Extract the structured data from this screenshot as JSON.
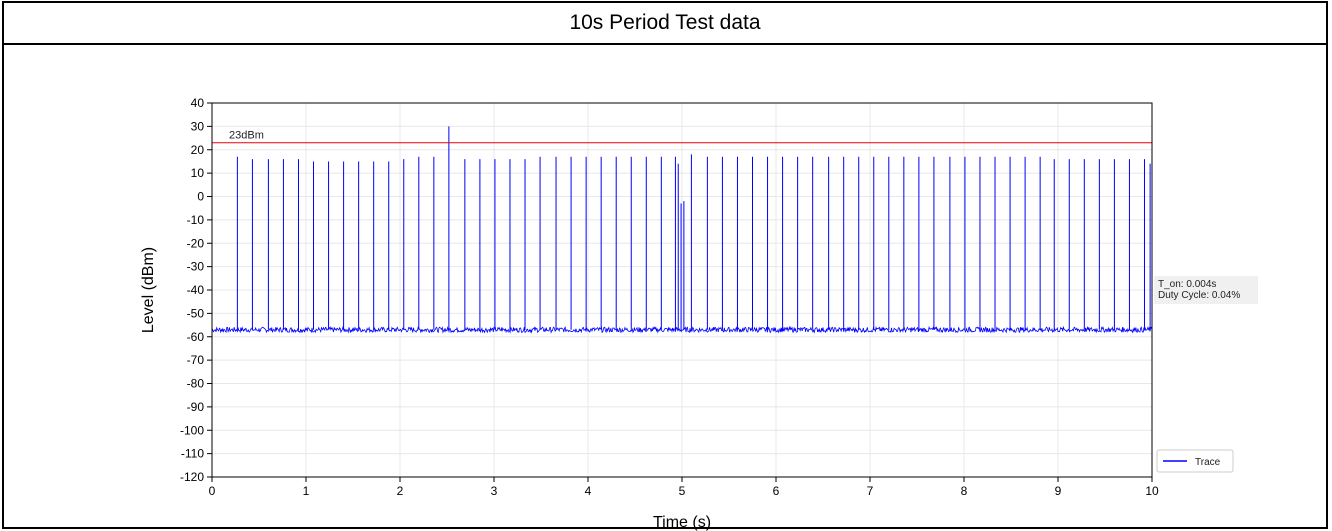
{
  "header": {
    "title": "10s Period Test data"
  },
  "chart_data": {
    "type": "line",
    "xlabel": "Time (s)",
    "ylabel": "Level (dBm)",
    "xlim": [
      0,
      10
    ],
    "ylim": [
      -120,
      40
    ],
    "xticks": [
      0,
      1,
      2,
      3,
      4,
      5,
      6,
      7,
      8,
      9,
      10
    ],
    "yticks": [
      40,
      30,
      20,
      10,
      0,
      -10,
      -20,
      -30,
      -40,
      -50,
      -60,
      -70,
      -80,
      -90,
      -100,
      -110,
      -120
    ],
    "grid": true,
    "legend_position": "bottom-right",
    "noise_floor_dbm": -57,
    "threshold": {
      "value": 23,
      "label": "23dBm",
      "color": "#e8000b"
    },
    "series": [
      {
        "name": "Trace",
        "color": "#0000ff",
        "pulses": [
          {
            "t": 0.27,
            "level": 17
          },
          {
            "t": 0.43,
            "level": 16
          },
          {
            "t": 0.6,
            "level": 16
          },
          {
            "t": 0.76,
            "level": 16
          },
          {
            "t": 0.92,
            "level": 16
          },
          {
            "t": 1.08,
            "level": 15
          },
          {
            "t": 1.24,
            "level": 15
          },
          {
            "t": 1.4,
            "level": 15
          },
          {
            "t": 1.56,
            "level": 15
          },
          {
            "t": 1.72,
            "level": 15
          },
          {
            "t": 1.88,
            "level": 15
          },
          {
            "t": 2.04,
            "level": 16
          },
          {
            "t": 2.2,
            "level": 17
          },
          {
            "t": 2.36,
            "level": 17
          },
          {
            "t": 2.52,
            "level": 30
          },
          {
            "t": 2.69,
            "level": 16
          },
          {
            "t": 2.85,
            "level": 16
          },
          {
            "t": 3.01,
            "level": 16
          },
          {
            "t": 3.17,
            "level": 16
          },
          {
            "t": 3.33,
            "level": 16
          },
          {
            "t": 3.49,
            "level": 17
          },
          {
            "t": 3.66,
            "level": 17
          },
          {
            "t": 3.82,
            "level": 17
          },
          {
            "t": 3.98,
            "level": 17
          },
          {
            "t": 4.14,
            "level": 17
          },
          {
            "t": 4.3,
            "level": 17
          },
          {
            "t": 4.46,
            "level": 17
          },
          {
            "t": 4.62,
            "level": 17
          },
          {
            "t": 4.78,
            "level": 17
          },
          {
            "t": 4.93,
            "level": 17
          },
          {
            "t": 4.96,
            "level": 14
          },
          {
            "t": 4.99,
            "level": -3
          },
          {
            "t": 5.02,
            "level": -2
          },
          {
            "t": 5.1,
            "level": 18
          },
          {
            "t": 5.27,
            "level": 17
          },
          {
            "t": 5.43,
            "level": 17
          },
          {
            "t": 5.59,
            "level": 17
          },
          {
            "t": 5.75,
            "level": 17
          },
          {
            "t": 5.91,
            "level": 17
          },
          {
            "t": 6.07,
            "level": 17
          },
          {
            "t": 6.23,
            "level": 17
          },
          {
            "t": 6.39,
            "level": 17
          },
          {
            "t": 6.56,
            "level": 17
          },
          {
            "t": 6.72,
            "level": 17
          },
          {
            "t": 6.88,
            "level": 17
          },
          {
            "t": 7.04,
            "level": 17
          },
          {
            "t": 7.2,
            "level": 17
          },
          {
            "t": 7.36,
            "level": 17
          },
          {
            "t": 7.52,
            "level": 17
          },
          {
            "t": 7.68,
            "level": 17
          },
          {
            "t": 7.85,
            "level": 17
          },
          {
            "t": 8.01,
            "level": 17
          },
          {
            "t": 8.17,
            "level": 17
          },
          {
            "t": 8.33,
            "level": 17
          },
          {
            "t": 8.49,
            "level": 17
          },
          {
            "t": 8.65,
            "level": 17
          },
          {
            "t": 8.81,
            "level": 17
          },
          {
            "t": 8.96,
            "level": 16
          },
          {
            "t": 9.12,
            "level": 16
          },
          {
            "t": 9.28,
            "level": 16
          },
          {
            "t": 9.44,
            "level": 16
          },
          {
            "t": 9.6,
            "level": 16
          },
          {
            "t": 9.76,
            "level": 16
          },
          {
            "t": 9.92,
            "level": 16
          },
          {
            "t": 9.98,
            "level": 14
          }
        ]
      }
    ],
    "annotations": [
      {
        "text": "T_on: 0.004s"
      },
      {
        "text": "Duty Cycle: 0.04%"
      }
    ]
  }
}
